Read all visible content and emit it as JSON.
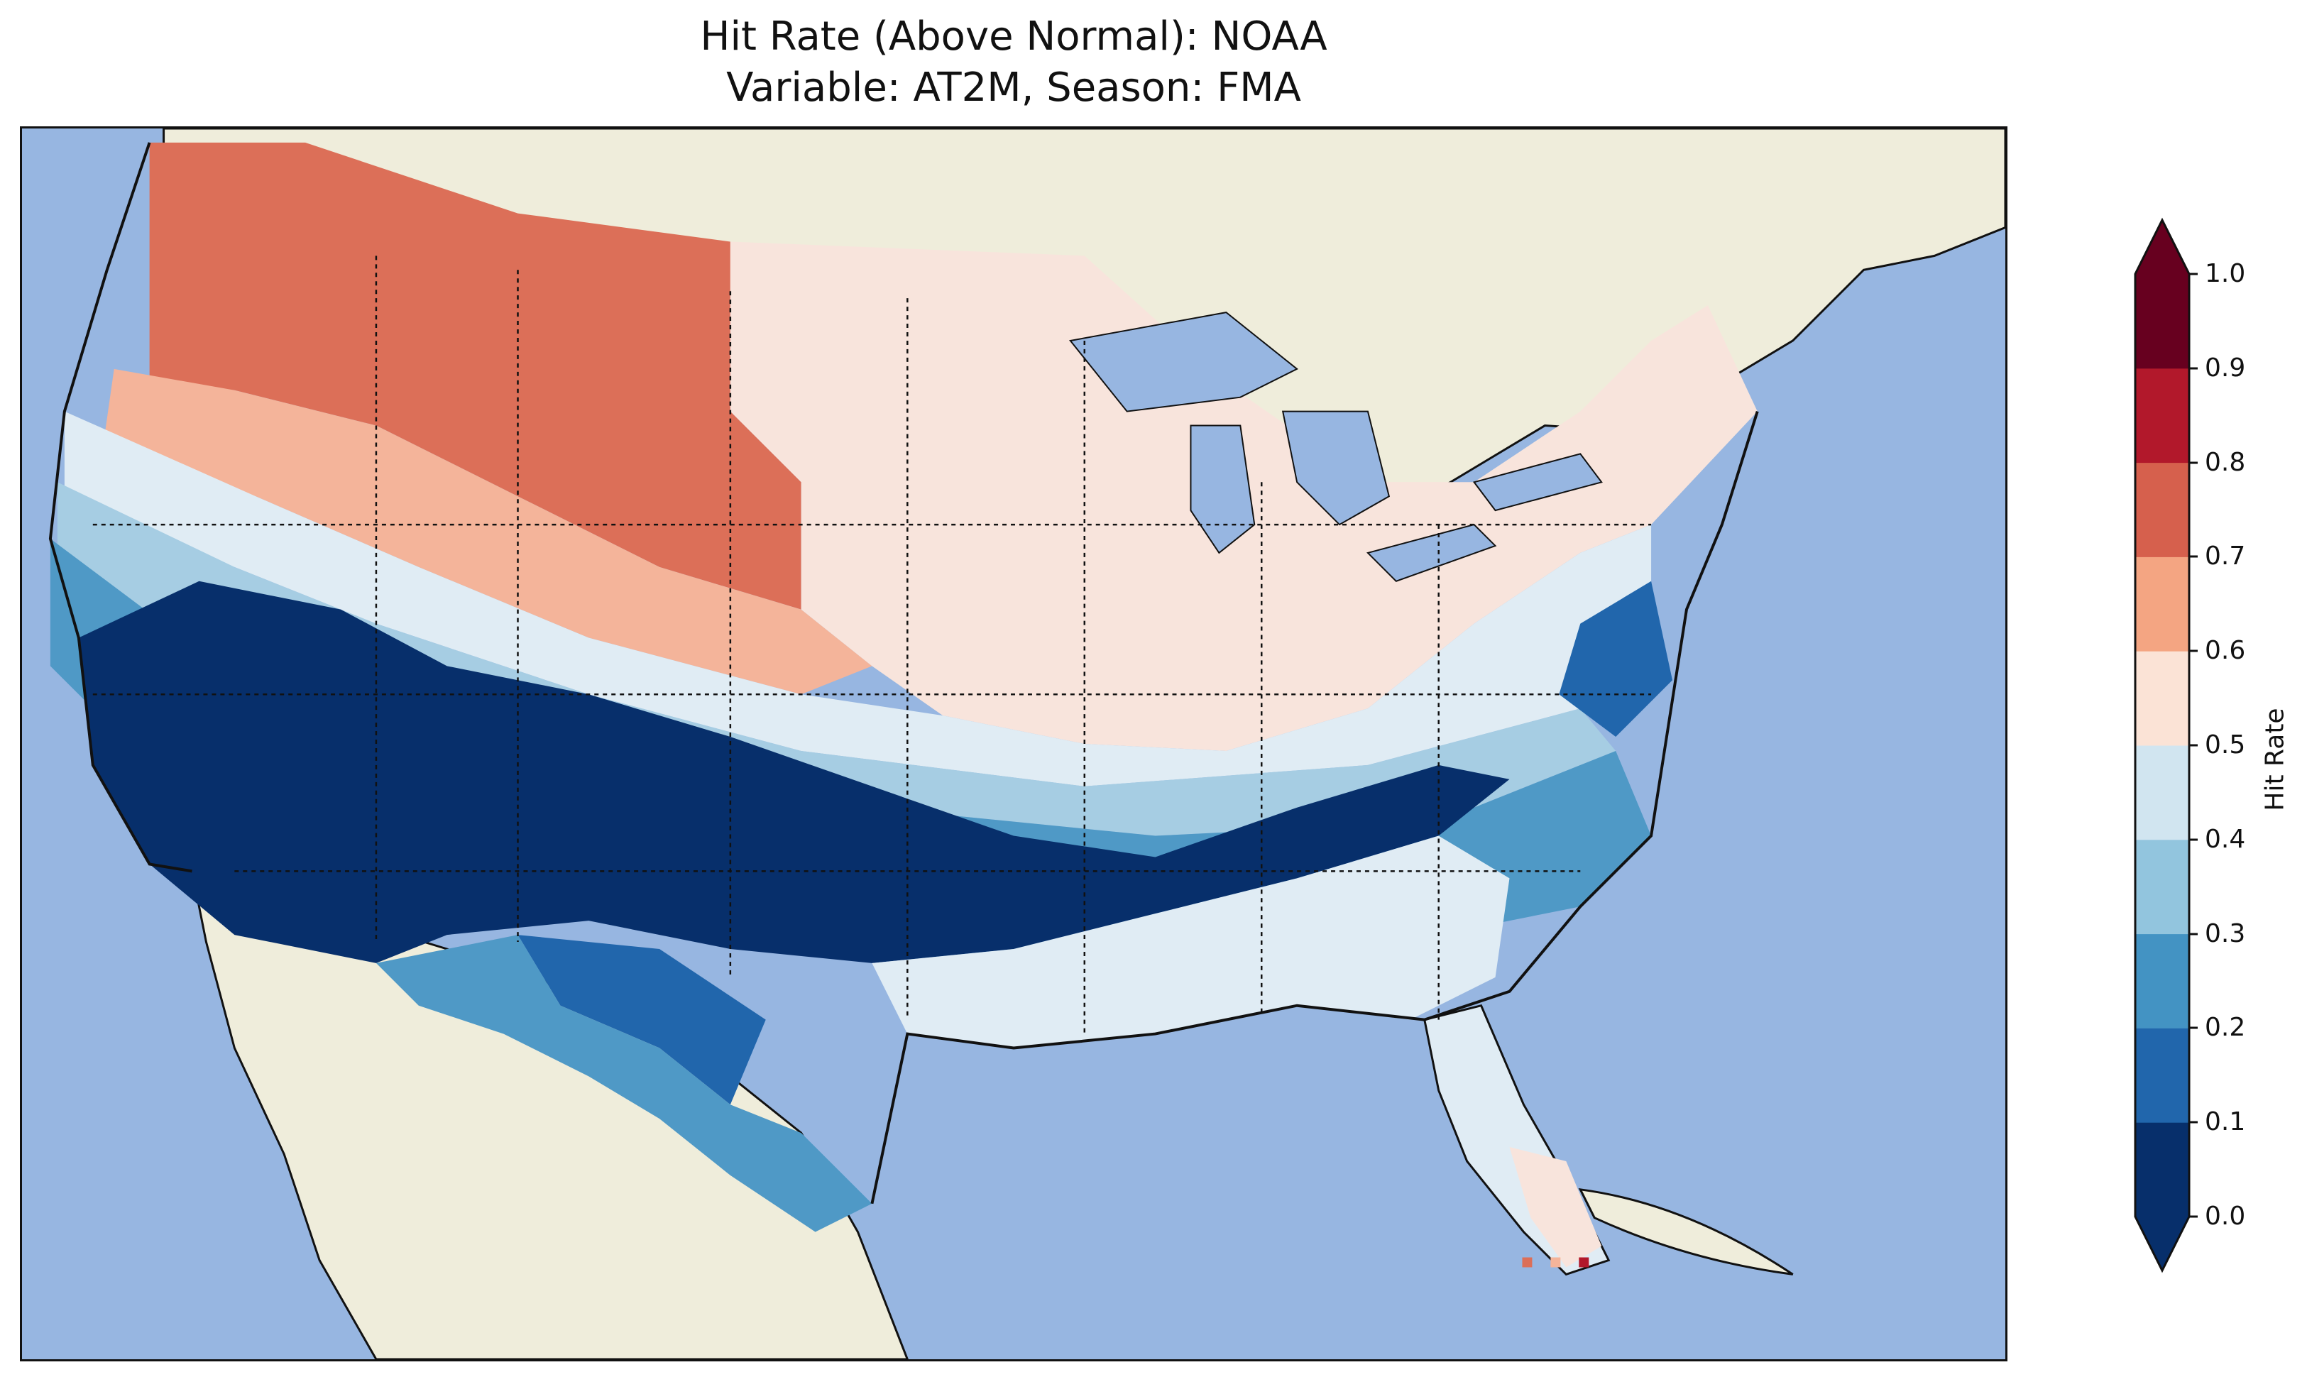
{
  "title": {
    "line1": "Hit Rate (Above Normal): NOAA",
    "line2": "Variable: AT2M, Season: FMA"
  },
  "map": {
    "region": "Contiguous United States",
    "background_colors": {
      "ocean": "#97b6e1",
      "land": "#efeddb",
      "border": "#111111"
    },
    "bands": [
      {
        "region": "Pacific Northwest / Northern Rockies / Northern Plains",
        "value_range": [
          0.7,
          0.8
        ],
        "color": "#dc6f58"
      },
      {
        "region": "Upper Midwest / Great Lakes / Northeast interior",
        "value_range": [
          0.5,
          0.6
        ],
        "color": "#f8e4dc"
      },
      {
        "region": "Central Plains / Mid-Atlantic",
        "value_range": [
          0.2,
          0.3
        ],
        "color": "#4f99c6"
      },
      {
        "region": "Southwest / Southern Plains / Tennessee Valley",
        "value_range": [
          0.0,
          0.1
        ],
        "color": "#072f6b"
      },
      {
        "region": "Gulf Coast / Southeast",
        "value_range": [
          0.4,
          0.5
        ],
        "color": "#e0ecf4"
      },
      {
        "region": "South Florida",
        "value_range": [
          0.5,
          0.6
        ],
        "color": "#f8e4dc"
      }
    ]
  },
  "colorbar": {
    "label": "Hit Rate",
    "ticks": [
      "0.0",
      "0.1",
      "0.2",
      "0.3",
      "0.4",
      "0.5",
      "0.6",
      "0.7",
      "0.8",
      "0.9",
      "1.0"
    ],
    "colors": [
      "#072f6b",
      "#2166ac",
      "#4393c3",
      "#92c5de",
      "#d1e5f0",
      "#fbe3d6",
      "#f4a582",
      "#d6604d",
      "#b2182b",
      "#67001f"
    ],
    "extend": "both"
  }
}
